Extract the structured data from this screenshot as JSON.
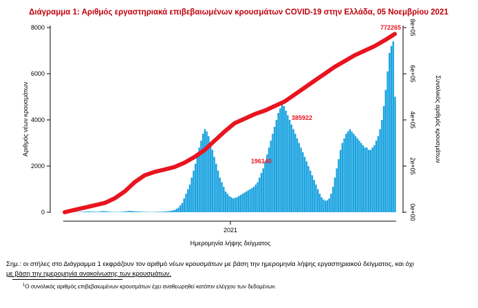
{
  "chart_data": {
    "type": "bar+line",
    "title": "Διάγραμμα 1: Αριθμός εργαστηριακά επιβεβαιωμένων κρουσμάτων COVID-19 στην Ελλάδα, 05 Νοεμβρίου 2021",
    "xlabel": "Ημερομηνία λήψης δείγματος",
    "ylabel_left": "Αριθμός νέων κρουσμάτων",
    "ylabel_right": "Συνολικός αριθμός κρουσμάτων",
    "x_tick_label": "2021",
    "ylim_left": [
      0,
      8000
    ],
    "ylim_right": [
      0,
      800000
    ],
    "yticks_left": [
      "0",
      "2000",
      "4000",
      "6000",
      "8000"
    ],
    "yticks_right": [
      "0e+00",
      "2e+05",
      "4e+05",
      "6e+05",
      "8e+05"
    ],
    "bar_color": "#1ba3e0",
    "line_color": "#e8141f",
    "annotations": [
      "772265",
      "385922",
      "196140"
    ],
    "daily_new_cases": [
      2,
      3,
      5,
      5,
      8,
      10,
      12,
      15,
      20,
      18,
      25,
      30,
      35,
      30,
      28,
      25,
      20,
      22,
      30,
      40,
      50,
      45,
      35,
      25,
      20,
      18,
      15,
      14,
      15,
      18,
      20,
      30,
      40,
      50,
      60,
      55,
      45,
      40,
      35,
      30,
      25,
      20,
      18,
      15,
      12,
      12,
      12,
      15,
      15,
      20,
      22,
      25,
      30,
      35,
      40,
      50,
      60,
      80,
      100,
      150,
      200,
      300,
      400,
      600,
      800,
      1000,
      1200,
      1500,
      1800,
      2100,
      2500,
      2800,
      3100,
      3400,
      3600,
      3500,
      3300,
      3000,
      2700,
      2400,
      2100,
      1800,
      1500,
      1300,
      1100,
      900,
      800,
      700,
      650,
      600,
      620,
      650,
      700,
      750,
      800,
      850,
      900,
      950,
      1000,
      1050,
      1100,
      1200,
      1300,
      1500,
      1700,
      1900,
      2200,
      2500,
      2800,
      3100,
      3400,
      3700,
      4000,
      4300,
      4500,
      4700,
      4600,
      4400,
      4200,
      4000,
      3800,
      3600,
      3400,
      3200,
      3000,
      2800,
      2600,
      2400,
      2200,
      2000,
      1800,
      1600,
      1400,
      1200,
      1000,
      800,
      650,
      550,
      500,
      520,
      600,
      800,
      1100,
      1500,
      1900,
      2300,
      2700,
      3000,
      3200,
      3400,
      3500,
      3600,
      3500,
      3400,
      3300,
      3200,
      3100,
      3000,
      2900,
      2800,
      2800,
      2700,
      2700,
      2800,
      2900,
      3100,
      3300,
      3600,
      4000,
      4600,
      5300,
      6100,
      6900,
      7200,
      7400,
      5000
    ],
    "cumulative_cases": [
      0,
      10000,
      20000,
      30000,
      40000,
      60000,
      90000,
      130000,
      160000,
      175000,
      185000,
      196140,
      215000,
      240000,
      270000,
      310000,
      350000,
      385922,
      405000,
      425000,
      440000,
      460000,
      480000,
      510000,
      540000,
      570000,
      600000,
      630000,
      655000,
      680000,
      700000,
      720000,
      745000,
      772265
    ]
  },
  "note": {
    "line1": "Σημ.: οι στήλες στο Διάγραμμα 1 εκφράζουν τον αριθμό νέων κρουσμάτων με βάση την ημερομηνία λήψης εργαστηριακού δείγματος, και όχι",
    "line2": "με βάση την ημερομηνία ανακοίνωσης των κρουσμάτων."
  },
  "footnote": {
    "marker": "1",
    "text": "Ο συνολικός αριθμός επιβεβαιωμένων κρουσμάτων έχει αναθεωρηθεί κατόπιν ελέγχου των δεδομένων."
  }
}
